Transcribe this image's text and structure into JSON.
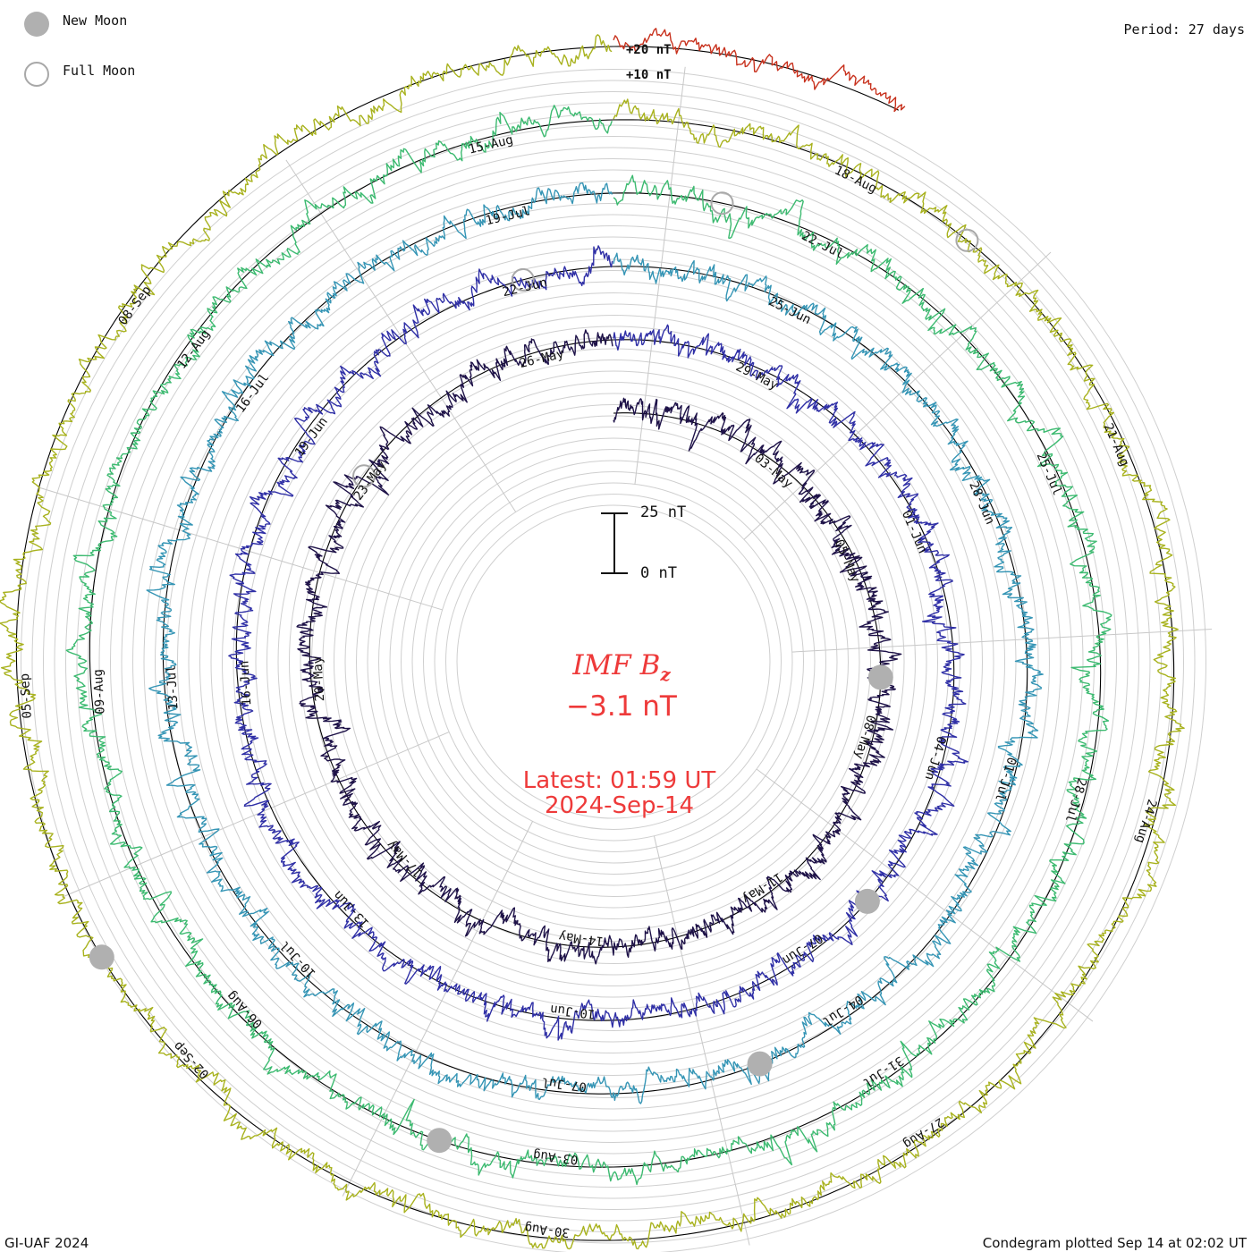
{
  "header": {
    "period": "Period: 27 days"
  },
  "legend": {
    "new_moon": "New Moon",
    "full_moon": "Full Moon",
    "new_moon_color": "#b0b0b0",
    "full_moon_color": "#a8a8a8"
  },
  "footer": {
    "left": "GI-UAF 2024",
    "right": "Condegram plotted Sep 14 at 02:02 UT"
  },
  "readout": {
    "quantity_main": "IMF B",
    "quantity_sub": "z",
    "value": "−3.1 nT",
    "latest": "Latest: 01:59 UT",
    "date": "2024-Sep-14",
    "color": "#ee3a3a"
  },
  "scale_bar": {
    "top_label": "25 nT",
    "bottom_label": "0 nT",
    "top_value": 25,
    "bottom_value": 0
  },
  "chart_data": {
    "type": "line",
    "layout": "spiral condegram",
    "period_days": 27,
    "angle_direction": "clockwise",
    "ring_scale_labels": [
      "+20 nT",
      "+10 nT"
    ],
    "cycles": [
      {
        "start": "2024-Apr-30",
        "color": "#1e1248",
        "date_labels": [
          "03-May",
          "05-May",
          "08-May",
          "11-May",
          "14-May",
          "17-May",
          "20-May",
          "23-May",
          "26-May"
        ]
      },
      {
        "start": "2024-May-27",
        "color": "#2f2fa6",
        "date_labels": [
          "29-May",
          "01-Jun",
          "04-Jun",
          "07-Jun",
          "10-Jun",
          "13-Jun",
          "16-Jun",
          "19-Jun",
          "22-Jun"
        ]
      },
      {
        "start": "2024-Jun-23",
        "color": "#3595b5",
        "date_labels": [
          "25-Jun",
          "28-Jun",
          "01-Jul",
          "04-Jul",
          "07-Jul",
          "10-Jul",
          "13-Jul",
          "16-Jul",
          "19-Jul"
        ]
      },
      {
        "start": "2024-Jul-20",
        "color": "#3cba70",
        "date_labels": [
          "22-Jul",
          "25-Jul",
          "28-Jul",
          "31-Jul",
          "03-Aug",
          "06-Aug",
          "09-Aug",
          "12-Aug",
          "15-Aug"
        ]
      },
      {
        "start": "2024-Aug-16",
        "color": "#a8b21e",
        "date_labels": [
          "18-Aug",
          "21-Aug",
          "24-Aug",
          "27-Aug",
          "30-Aug",
          "02-Sep",
          "05-Sep",
          "08-Sep"
        ]
      },
      {
        "start": "2024-Sep-12",
        "color": "#c8321e",
        "date_labels": []
      }
    ],
    "moon_markers": [
      {
        "type": "new",
        "date": "2024-May-07"
      },
      {
        "type": "full",
        "date": "2024-May-23"
      },
      {
        "type": "new",
        "date": "2024-Jun-06"
      },
      {
        "type": "full",
        "date": "2024-Jun-22"
      },
      {
        "type": "new",
        "date": "2024-Jul-05"
      },
      {
        "type": "full",
        "date": "2024-Jul-21"
      },
      {
        "type": "new",
        "date": "2024-Aug-04"
      },
      {
        "type": "full",
        "date": "2024-Aug-19"
      },
      {
        "type": "new",
        "date": "2024-Sep-03"
      }
    ],
    "gridlines": true
  }
}
